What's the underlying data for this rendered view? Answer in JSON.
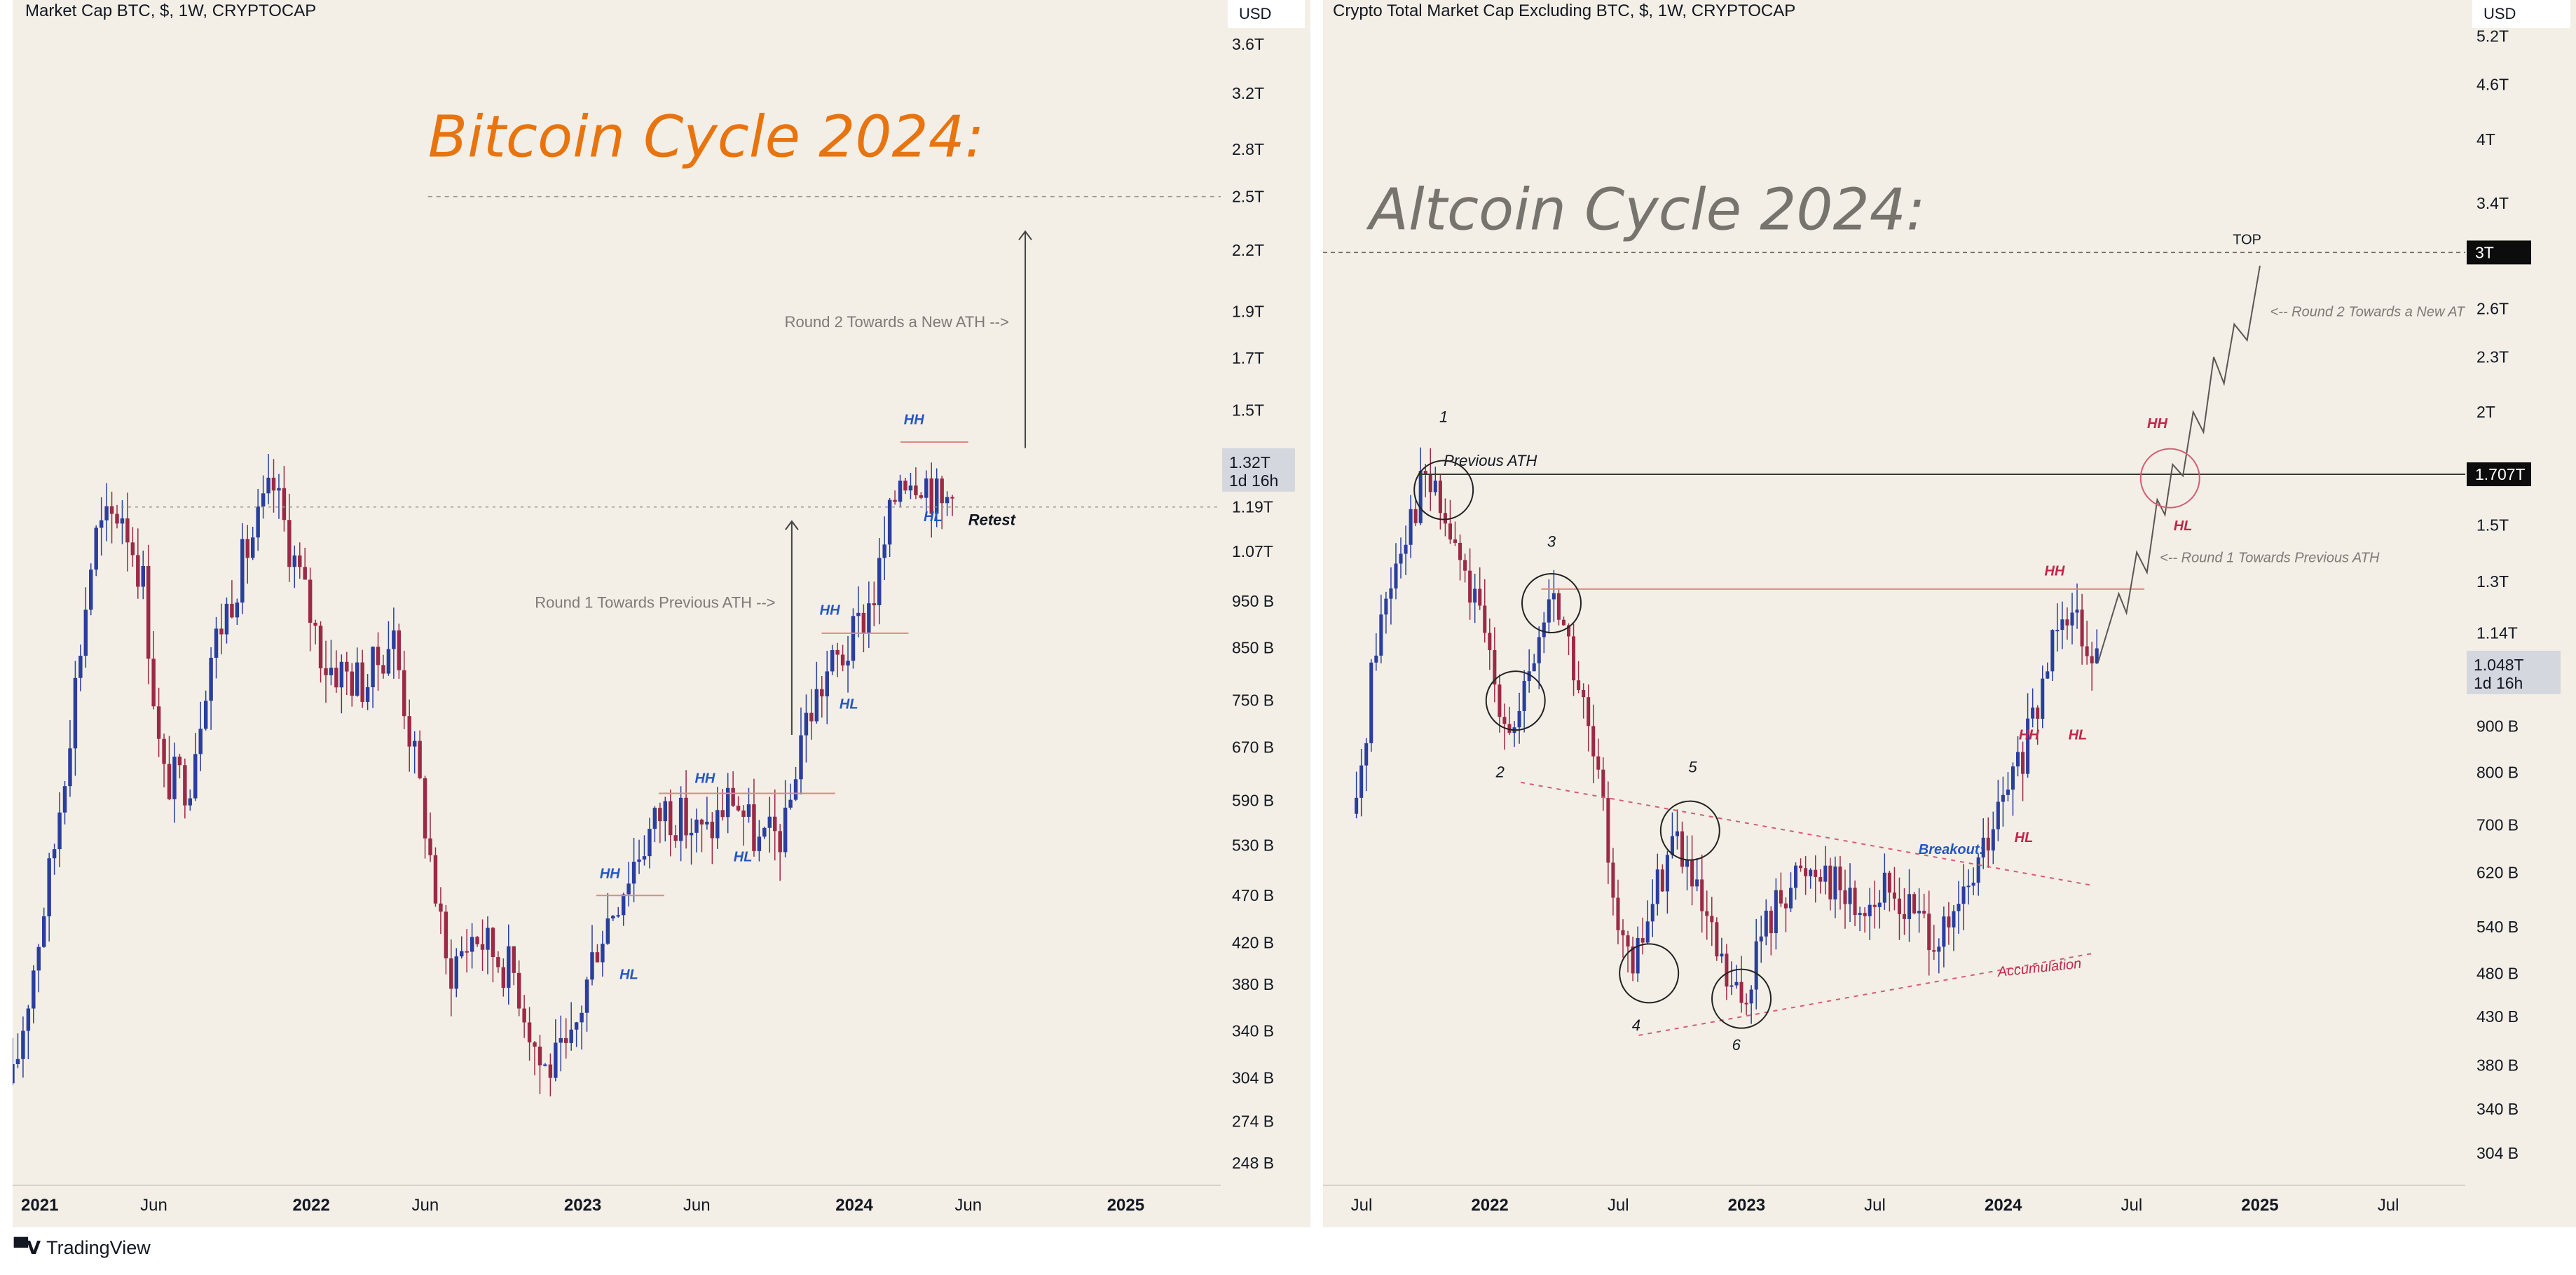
{
  "brand": {
    "logo_text": "TradingView"
  },
  "chart_data": [
    {
      "type": "candlestick",
      "symbol_title": "Market Cap BTC, $, 1W, CRYPTOCAP",
      "currency": "USD",
      "overlay_title": "Bitcoin Cycle 2024:",
      "y_axis_scale": "log",
      "ylim": [
        235,
        4000
      ],
      "y_ticks": [
        {
          "v": 3600,
          "label": "3.6T"
        },
        {
          "v": 3200,
          "label": "3.2T"
        },
        {
          "v": 2800,
          "label": "2.8T"
        },
        {
          "v": 2500,
          "label": "2.5T"
        },
        {
          "v": 2200,
          "label": "2.2T"
        },
        {
          "v": 1900,
          "label": "1.9T"
        },
        {
          "v": 1700,
          "label": "1.7T"
        },
        {
          "v": 1500,
          "label": "1.5T"
        },
        {
          "v": 1190,
          "label": "1.19T"
        },
        {
          "v": 1070,
          "label": "1.07T"
        },
        {
          "v": 950,
          "label": "950 B"
        },
        {
          "v": 850,
          "label": "850 B"
        },
        {
          "v": 750,
          "label": "750 B"
        },
        {
          "v": 670,
          "label": "670 B"
        },
        {
          "v": 590,
          "label": "590 B"
        },
        {
          "v": 530,
          "label": "530 B"
        },
        {
          "v": 470,
          "label": "470 B"
        },
        {
          "v": 420,
          "label": "420 B"
        },
        {
          "v": 380,
          "label": "380 B"
        },
        {
          "v": 340,
          "label": "340 B"
        },
        {
          "v": 304,
          "label": "304 B"
        },
        {
          "v": 274,
          "label": "274 B"
        },
        {
          "v": 248,
          "label": "248 B"
        }
      ],
      "x_range": [
        2020.9,
        2025.35
      ],
      "x_ticks": [
        {
          "t": 2021.0,
          "label": "2021",
          "bold": true
        },
        {
          "t": 2021.42,
          "label": "Jun",
          "bold": false
        },
        {
          "t": 2022.0,
          "label": "2022",
          "bold": true
        },
        {
          "t": 2022.42,
          "label": "Jun",
          "bold": false
        },
        {
          "t": 2023.0,
          "label": "2023",
          "bold": true
        },
        {
          "t": 2023.42,
          "label": "Jun",
          "bold": false
        },
        {
          "t": 2024.0,
          "label": "2024",
          "bold": true
        },
        {
          "t": 2024.42,
          "label": "Jun",
          "bold": false
        },
        {
          "t": 2025.0,
          "label": "2025",
          "bold": true
        }
      ],
      "current_price": {
        "v": 1320,
        "label": "1.32T",
        "countdown": "1d 16h"
      },
      "price_path": [
        [
          2020.9,
          300
        ],
        [
          2021.05,
          520
        ],
        [
          2021.2,
          1100
        ],
        [
          2021.3,
          1190
        ],
        [
          2021.38,
          1000
        ],
        [
          2021.45,
          620
        ],
        [
          2021.55,
          620
        ],
        [
          2021.62,
          820
        ],
        [
          2021.75,
          1050
        ],
        [
          2021.86,
          1250
        ],
        [
          2021.95,
          1020
        ],
        [
          2022.05,
          820
        ],
        [
          2022.2,
          780
        ],
        [
          2022.3,
          880
        ],
        [
          2022.42,
          560
        ],
        [
          2022.5,
          390
        ],
        [
          2022.6,
          430
        ],
        [
          2022.75,
          390
        ],
        [
          2022.85,
          310
        ],
        [
          2022.95,
          320
        ],
        [
          2023.05,
          420
        ],
        [
          2023.2,
          520
        ],
        [
          2023.3,
          580
        ],
        [
          2023.45,
          540
        ],
        [
          2023.55,
          600
        ],
        [
          2023.65,
          530
        ],
        [
          2023.75,
          550
        ],
        [
          2023.8,
          690
        ],
        [
          2023.9,
          800
        ],
        [
          2023.98,
          850
        ],
        [
          2024.08,
          980
        ],
        [
          2024.17,
          1300
        ],
        [
          2024.25,
          1290
        ],
        [
          2024.33,
          1180
        ],
        [
          2024.37,
          1320
        ]
      ],
      "annotations": {
        "round1": "Round 1 Towards Previous ATH -->",
        "round2": "Round 2 Towards a New ATH -->",
        "retest": "Retest",
        "hh": "HH",
        "hl": "HL"
      },
      "levels": {
        "previous_ath": 1190,
        "target": 2500
      }
    },
    {
      "type": "candlestick",
      "symbol_title": "Crypto Total Market Cap Excluding BTC, $, 1W, CRYPTOCAP",
      "currency": "USD",
      "overlay_title": "Altcoin Cycle 2024:",
      "y_axis_scale": "log",
      "ylim": [
        280,
        5700
      ],
      "y_ticks": [
        {
          "v": 5200,
          "label": "5.2T"
        },
        {
          "v": 4600,
          "label": "4.6T"
        },
        {
          "v": 4000,
          "label": "4T"
        },
        {
          "v": 3400,
          "label": "3.4T"
        },
        {
          "v": 2600,
          "label": "2.6T"
        },
        {
          "v": 2300,
          "label": "2.3T"
        },
        {
          "v": 2000,
          "label": "2T"
        },
        {
          "v": 1500,
          "label": "1.5T"
        },
        {
          "v": 1300,
          "label": "1.3T"
        },
        {
          "v": 1140,
          "label": "1.14T"
        },
        {
          "v": 900,
          "label": "900 B"
        },
        {
          "v": 800,
          "label": "800 B"
        },
        {
          "v": 700,
          "label": "700 B"
        },
        {
          "v": 620,
          "label": "620 B"
        },
        {
          "v": 540,
          "label": "540 B"
        },
        {
          "v": 480,
          "label": "480 B"
        },
        {
          "v": 430,
          "label": "430 B"
        },
        {
          "v": 380,
          "label": "380 B"
        },
        {
          "v": 340,
          "label": "340 B"
        },
        {
          "v": 304,
          "label": "304 B"
        }
      ],
      "x_range": [
        2021.35,
        2025.8
      ],
      "x_ticks": [
        {
          "t": 2021.5,
          "label": "Jul",
          "bold": false
        },
        {
          "t": 2022.0,
          "label": "2022",
          "bold": true
        },
        {
          "t": 2022.5,
          "label": "Jul",
          "bold": false
        },
        {
          "t": 2023.0,
          "label": "2023",
          "bold": true
        },
        {
          "t": 2023.5,
          "label": "Jul",
          "bold": false
        },
        {
          "t": 2024.0,
          "label": "2024",
          "bold": true
        },
        {
          "t": 2024.5,
          "label": "Jul",
          "bold": false
        },
        {
          "t": 2025.0,
          "label": "2025",
          "bold": true
        },
        {
          "t": 2025.5,
          "label": "Jul",
          "bold": false
        }
      ],
      "current_price": {
        "v": 1048,
        "label": "1.048T",
        "countdown": "1d 16h"
      },
      "marked_levels": [
        {
          "v": 3000,
          "label": "3T"
        },
        {
          "v": 1707,
          "label": "1.707T"
        }
      ],
      "price_path": [
        [
          2021.48,
          720
        ],
        [
          2021.55,
          1100
        ],
        [
          2021.65,
          1450
        ],
        [
          2021.75,
          1700
        ],
        [
          2021.85,
          1450
        ],
        [
          2021.95,
          1200
        ],
        [
          2022.05,
          950
        ],
        [
          2022.1,
          880
        ],
        [
          2022.2,
          1150
        ],
        [
          2022.25,
          1280
        ],
        [
          2022.35,
          980
        ],
        [
          2022.42,
          780
        ],
        [
          2022.5,
          560
        ],
        [
          2022.55,
          470
        ],
        [
          2022.62,
          560
        ],
        [
          2022.72,
          690
        ],
        [
          2022.82,
          560
        ],
        [
          2022.92,
          470
        ],
        [
          2022.98,
          440
        ],
        [
          2023.05,
          520
        ],
        [
          2023.15,
          600
        ],
        [
          2023.28,
          640
        ],
        [
          2023.42,
          570
        ],
        [
          2023.55,
          590
        ],
        [
          2023.68,
          550
        ],
        [
          2023.78,
          520
        ],
        [
          2023.85,
          580
        ],
        [
          2023.95,
          680
        ],
        [
          2024.05,
          800
        ],
        [
          2024.13,
          920
        ],
        [
          2024.22,
          1250
        ],
        [
          2024.3,
          1180
        ],
        [
          2024.37,
          1060
        ]
      ],
      "projection_path": [
        [
          2024.37,
          1060
        ],
        [
          2024.45,
          1260
        ],
        [
          2024.48,
          1200
        ],
        [
          2024.52,
          1400
        ],
        [
          2024.56,
          1330
        ],
        [
          2024.6,
          1600
        ],
        [
          2024.63,
          1540
        ],
        [
          2024.66,
          1750
        ],
        [
          2024.7,
          1700
        ],
        [
          2024.74,
          2000
        ],
        [
          2024.78,
          1900
        ],
        [
          2024.82,
          2300
        ],
        [
          2024.86,
          2150
        ],
        [
          2024.9,
          2500
        ],
        [
          2024.95,
          2400
        ],
        [
          2025.0,
          2900
        ]
      ],
      "annotations": {
        "previous_ath": "Previous ATH",
        "top": "TOP",
        "round1": "<-- Round 1 Towards Previous ATH",
        "round2": "<-- Round 2 Towards a New ATH",
        "breakout": "Breakout:",
        "accumulation": "Accumulation",
        "hh": "HH",
        "hl": "HL",
        "wave_labels": [
          "1",
          "2",
          "3",
          "4",
          "5",
          "6"
        ]
      }
    }
  ]
}
